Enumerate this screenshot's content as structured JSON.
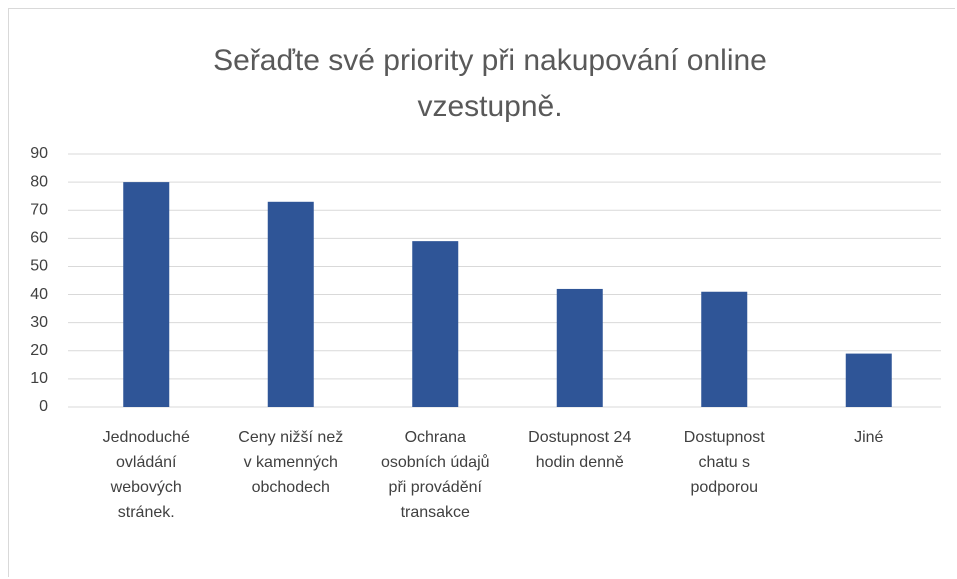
{
  "chart_data": {
    "type": "bar",
    "title": "Seřaďte své priority při nakupování online vzestupně.",
    "categories": [
      "Jednoduché ovládání webových stránek.",
      "Ceny nižší než v kamenných obchodech",
      "Ochrana osobních údajů při provádění transakce",
      "Dostupnost 24 hodin denně",
      "Dostupnost chatu s podporou",
      "Jiné"
    ],
    "values": [
      80,
      73,
      59,
      42,
      41,
      19
    ],
    "color": "#2f5597",
    "ylim": [
      0,
      90
    ],
    "yticks": [
      0,
      10,
      20,
      30,
      40,
      50,
      60,
      70,
      80,
      90
    ],
    "grid": true
  }
}
